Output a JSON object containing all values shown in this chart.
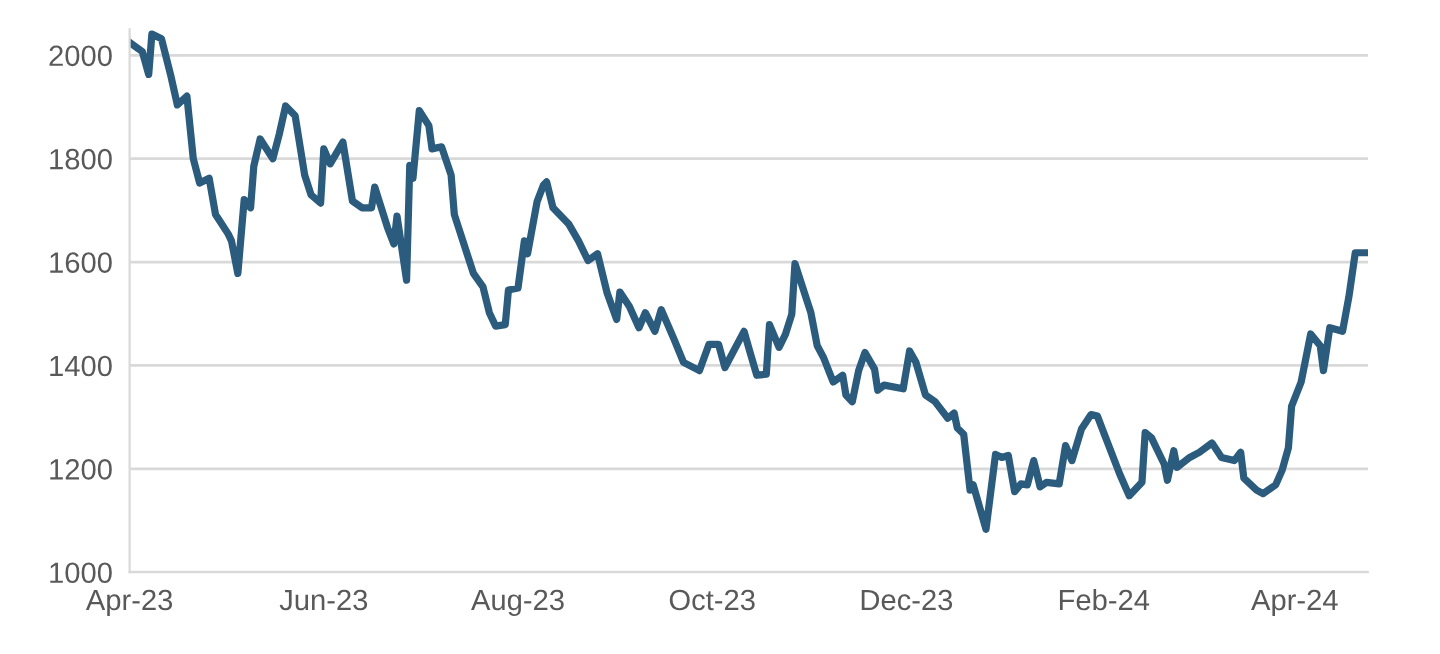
{
  "chart_data": {
    "type": "line",
    "grid": "y",
    "line_style": "solid",
    "marker": "none",
    "xlim": [
      "2023-04-01",
      "2024-04-24"
    ],
    "xticks": [
      {
        "value": "2023-04-01",
        "label": "Apr-23"
      },
      {
        "value": "2023-06-01",
        "label": "Jun-23"
      },
      {
        "value": "2023-08-01",
        "label": "Aug-23"
      },
      {
        "value": "2023-10-01",
        "label": "Oct-23"
      },
      {
        "value": "2023-12-01",
        "label": "Dec-23"
      },
      {
        "value": "2024-02-01",
        "label": "Feb-24"
      },
      {
        "value": "2024-04-01",
        "label": "Apr-24"
      }
    ],
    "ylim": [
      1000,
      2050
    ],
    "yticks": [
      1000,
      1200,
      1400,
      1600,
      1800,
      2000
    ],
    "x": [
      "2023-04-01",
      "2023-04-05",
      "2023-04-07",
      "2023-04-08",
      "2023-04-11",
      "2023-04-14",
      "2023-04-16",
      "2023-04-19",
      "2023-04-21",
      "2023-04-23",
      "2023-04-26",
      "2023-04-28",
      "2023-05-02",
      "2023-05-03",
      "2023-05-05",
      "2023-05-07",
      "2023-05-09",
      "2023-05-10",
      "2023-05-12",
      "2023-05-16",
      "2023-05-18",
      "2023-05-20",
      "2023-05-23",
      "2023-05-26",
      "2023-05-28",
      "2023-05-31",
      "2023-06-01",
      "2023-06-03",
      "2023-06-07",
      "2023-06-10",
      "2023-06-13",
      "2023-06-16",
      "2023-06-17",
      "2023-06-21",
      "2023-06-23",
      "2023-06-24",
      "2023-06-27",
      "2023-06-28",
      "2023-06-29",
      "2023-07-01",
      "2023-07-04",
      "2023-07-05",
      "2023-07-08",
      "2023-07-11",
      "2023-07-12",
      "2023-07-18",
      "2023-07-21",
      "2023-07-23",
      "2023-07-25",
      "2023-07-28",
      "2023-07-29",
      "2023-08-01",
      "2023-08-03",
      "2023-08-04",
      "2023-08-07",
      "2023-08-09",
      "2023-08-10",
      "2023-08-12",
      "2023-08-17",
      "2023-08-20",
      "2023-08-23",
      "2023-08-26",
      "2023-08-29",
      "2023-09-01",
      "2023-09-02",
      "2023-09-05",
      "2023-09-08",
      "2023-09-10",
      "2023-09-13",
      "2023-09-15",
      "2023-09-19",
      "2023-09-22",
      "2023-09-27",
      "2023-09-30",
      "2023-10-03",
      "2023-10-05",
      "2023-10-11",
      "2023-10-13",
      "2023-10-15",
      "2023-10-18",
      "2023-10-19",
      "2023-10-22",
      "2023-10-24",
      "2023-10-26",
      "2023-10-27",
      "2023-10-30",
      "2023-11-01",
      "2023-11-03",
      "2023-11-05",
      "2023-11-08",
      "2023-11-11",
      "2023-11-12",
      "2023-11-14",
      "2023-11-16",
      "2023-11-18",
      "2023-11-21",
      "2023-11-22",
      "2023-11-24",
      "2023-11-30",
      "2023-12-02",
      "2023-12-04",
      "2023-12-07",
      "2023-12-10",
      "2023-12-14",
      "2023-12-16",
      "2023-12-17",
      "2023-12-19",
      "2023-12-21",
      "2023-12-22",
      "2023-12-26",
      "2023-12-29",
      "2023-12-31",
      "2024-01-02",
      "2024-01-04",
      "2024-01-06",
      "2024-01-08",
      "2024-01-10",
      "2024-01-12",
      "2024-01-14",
      "2024-01-18",
      "2024-01-20",
      "2024-01-22",
      "2024-01-25",
      "2024-01-28",
      "2024-01-30",
      "2024-02-02",
      "2024-02-06",
      "2024-02-09",
      "2024-02-13",
      "2024-02-14",
      "2024-02-16",
      "2024-02-20",
      "2024-02-21",
      "2024-02-23",
      "2024-02-24",
      "2024-02-28",
      "2024-03-02",
      "2024-03-06",
      "2024-03-09",
      "2024-03-13",
      "2024-03-15",
      "2024-03-16",
      "2024-03-20",
      "2024-03-22",
      "2024-03-26",
      "2024-03-28",
      "2024-03-30",
      "2024-03-31",
      "2024-04-03",
      "2024-04-06",
      "2024-04-09",
      "2024-04-10",
      "2024-04-12",
      "2024-04-16",
      "2024-04-18",
      "2024-04-20",
      "2024-04-23"
    ],
    "series": [
      {
        "color": "#2b5c7e",
        "values": [
          2025,
          2007,
          1963,
          2041,
          2032,
          1959,
          1904,
          1921,
          1800,
          1753,
          1762,
          1692,
          1654,
          1641,
          1578,
          1721,
          1705,
          1785,
          1838,
          1800,
          1847,
          1902,
          1883,
          1768,
          1730,
          1714,
          1819,
          1790,
          1832,
          1718,
          1705,
          1705,
          1745,
          1667,
          1635,
          1689,
          1565,
          1787,
          1762,
          1893,
          1864,
          1819,
          1823,
          1768,
          1692,
          1578,
          1552,
          1502,
          1476,
          1479,
          1546,
          1550,
          1641,
          1616,
          1717,
          1749,
          1755,
          1705,
          1673,
          1641,
          1603,
          1616,
          1540,
          1489,
          1542,
          1514,
          1473,
          1502,
          1466,
          1508,
          1451,
          1406,
          1390,
          1441,
          1441,
          1396,
          1466,
          1423,
          1381,
          1383,
          1479,
          1435,
          1460,
          1499,
          1597,
          1540,
          1502,
          1438,
          1415,
          1368,
          1381,
          1343,
          1330,
          1390,
          1425,
          1393,
          1352,
          1362,
          1355,
          1428,
          1406,
          1343,
          1330,
          1298,
          1308,
          1279,
          1267,
          1159,
          1169,
          1083,
          1228,
          1222,
          1226,
          1156,
          1171,
          1169,
          1216,
          1165,
          1174,
          1171,
          1245,
          1216,
          1277,
          1305,
          1302,
          1254,
          1190,
          1148,
          1174,
          1270,
          1260,
          1209,
          1178,
          1235,
          1203,
          1222,
          1232,
          1250,
          1222,
          1216,
          1232,
          1182,
          1159,
          1152,
          1169,
          1197,
          1241,
          1321,
          1368,
          1461,
          1438,
          1390,
          1473,
          1466,
          1533,
          1618,
          1618
        ]
      }
    ]
  }
}
